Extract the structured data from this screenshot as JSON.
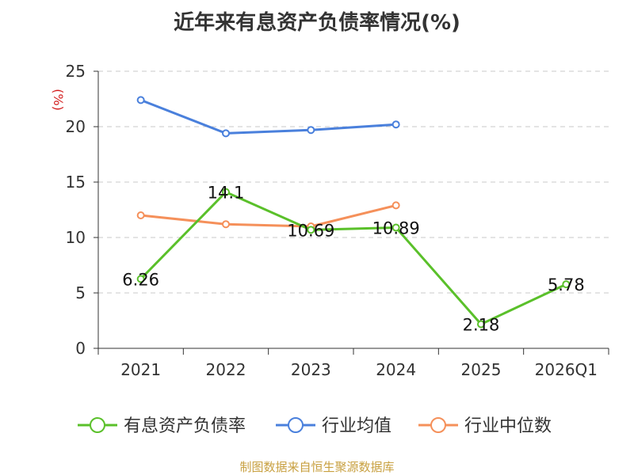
{
  "title": "近年来有息资产负债率情况(%)",
  "source": "制图数据来自恒生聚源数据库",
  "colors": {
    "source_text": "#c8a040",
    "unit_text": "#d42020"
  },
  "chart_data": {
    "type": "line",
    "title": "近年来有息资产负债率情况(%)",
    "xlabel": "",
    "ylabel": "(%)",
    "categories": [
      "2021",
      "2022",
      "2023",
      "2024",
      "2025",
      "2026Q1"
    ],
    "ylim": [
      0,
      25
    ],
    "yticks": [
      0,
      5,
      10,
      15,
      20,
      25
    ],
    "grid": true,
    "legend_position": "bottom",
    "series": [
      {
        "name": "有息资产负债率",
        "color": "#5ac02a",
        "values": [
          6.26,
          14.1,
          10.69,
          10.89,
          2.18,
          5.78
        ],
        "labels": [
          "6.26",
          "14.1",
          "10.69",
          "10.89",
          "2.18",
          "5.78"
        ]
      },
      {
        "name": "行业均值",
        "color": "#4a80dc",
        "values": [
          22.4,
          19.4,
          19.7,
          20.2,
          null,
          null
        ]
      },
      {
        "name": "行业中位数",
        "color": "#f5905a",
        "values": [
          12.0,
          11.2,
          11.0,
          12.9,
          null,
          null
        ]
      }
    ]
  }
}
